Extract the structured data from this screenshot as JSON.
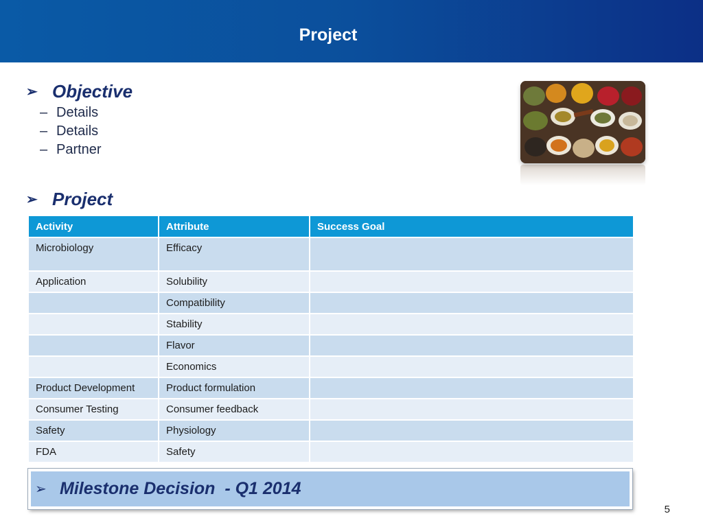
{
  "header": {
    "title": "Project"
  },
  "objective": {
    "heading": "Objective",
    "items": [
      "Details",
      "Details",
      "Partner"
    ]
  },
  "project": {
    "heading": "Project",
    "columns": [
      "Activity",
      "Attribute",
      "Success Goal"
    ],
    "rows": [
      [
        "Microbiology",
        "Efficacy",
        ""
      ],
      [
        "Application",
        "Solubility",
        ""
      ],
      [
        "",
        "Compatibility",
        ""
      ],
      [
        "",
        "Stability",
        ""
      ],
      [
        "",
        "Flavor",
        ""
      ],
      [
        "",
        "Economics",
        ""
      ],
      [
        "Product Development",
        "Product formulation",
        ""
      ],
      [
        "Consumer Testing",
        "Consumer feedback",
        ""
      ],
      [
        "Safety",
        "Physiology",
        ""
      ],
      [
        "FDA",
        "Safety",
        ""
      ]
    ]
  },
  "milestone": {
    "text": "Milestone Decision  - Q1 2014"
  },
  "page_number": "5",
  "icons": {
    "bullet": "arrow-bullet-icon",
    "sub_bullet": "dash"
  },
  "colors": {
    "header_start": "#0a5aa6",
    "header_end": "#0c2f86",
    "heading_text": "#1a2f6e",
    "table_header": "#0e98d6",
    "row_dark": "#c9dcee",
    "row_light": "#e6eef7",
    "milestone_bg": "#a9c8e9"
  }
}
